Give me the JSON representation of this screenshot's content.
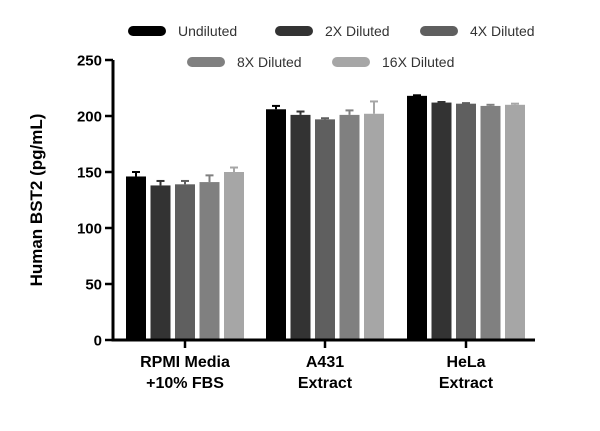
{
  "chart_data": {
    "type": "bar",
    "title": "",
    "ylabel": "Human BST2 (pg/mL)",
    "xlabel": "",
    "ylim": [
      0,
      250
    ],
    "yticks": [
      0,
      50,
      100,
      150,
      200,
      250
    ],
    "categories": [
      [
        "RPMI Media",
        "+10% FBS"
      ],
      [
        "A431",
        "Extract"
      ],
      [
        "HeLa",
        "Extract"
      ]
    ],
    "series": [
      {
        "name": "Undiluted",
        "color": "#000000",
        "values": [
          146,
          206,
          218
        ],
        "errors": [
          4,
          3,
          0.5
        ]
      },
      {
        "name": "2X Diluted",
        "color": "#333333",
        "values": [
          138,
          201,
          212
        ],
        "errors": [
          4,
          3,
          0.5
        ]
      },
      {
        "name": "4X Diluted",
        "color": "#5f5f5f",
        "values": [
          139,
          197,
          211
        ],
        "errors": [
          3,
          1,
          0.5
        ]
      },
      {
        "name": "8X Diluted",
        "color": "#808080",
        "values": [
          141,
          201,
          209
        ],
        "errors": [
          6,
          4,
          1
        ]
      },
      {
        "name": "16X Diluted",
        "color": "#a6a6a6",
        "values": [
          150,
          202,
          210
        ],
        "errors": [
          4,
          11,
          1
        ]
      }
    ],
    "legend_position": "top"
  }
}
